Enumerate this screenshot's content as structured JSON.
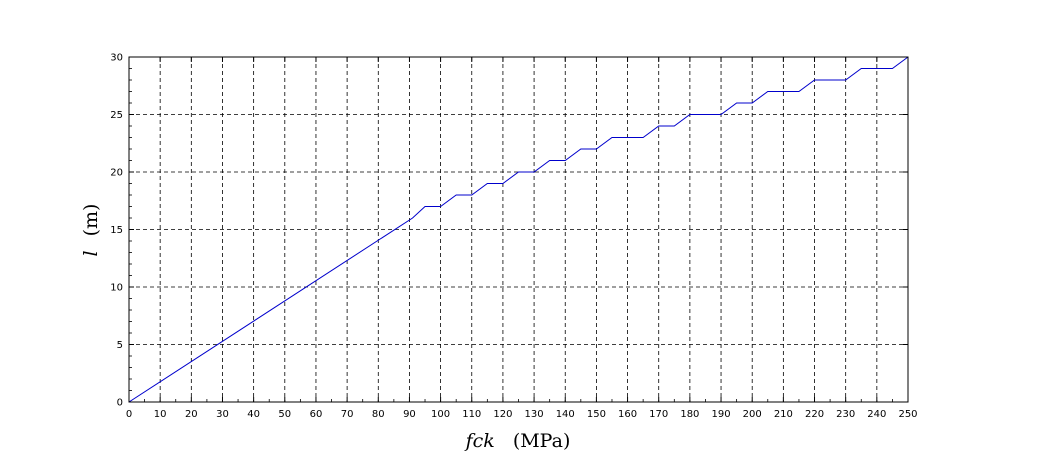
{
  "chart_data": {
    "type": "line",
    "xlabel_var": "fck",
    "xlabel_unit": "(MPa)",
    "ylabel_var": "l",
    "ylabel_unit": "(m)",
    "xlim": [
      0,
      250
    ],
    "ylim": [
      0,
      30
    ],
    "x_ticks": [
      0,
      10,
      20,
      30,
      40,
      50,
      60,
      70,
      80,
      90,
      100,
      110,
      120,
      130,
      140,
      150,
      160,
      170,
      180,
      190,
      200,
      210,
      220,
      230,
      240,
      250
    ],
    "y_ticks": [
      0,
      5,
      10,
      15,
      20,
      25,
      30
    ],
    "grid": true,
    "grid_style": "dashed",
    "series": [
      {
        "color": "#0000cc",
        "x": [
          0,
          91,
          95,
          100,
          105,
          110,
          115,
          120,
          125,
          130,
          135,
          140,
          145,
          150,
          155,
          160,
          165,
          170,
          175,
          180,
          185,
          190,
          195,
          200,
          205,
          210,
          215,
          220,
          225,
          230,
          235,
          240,
          245,
          250
        ],
        "y": [
          0,
          16,
          17,
          17,
          18,
          18,
          19,
          19,
          20,
          20,
          21,
          21,
          22,
          22,
          23,
          23,
          23,
          24,
          24,
          25,
          25,
          25,
          26,
          26,
          27,
          27,
          27,
          28,
          28,
          28,
          29,
          29,
          29,
          30
        ]
      }
    ]
  }
}
